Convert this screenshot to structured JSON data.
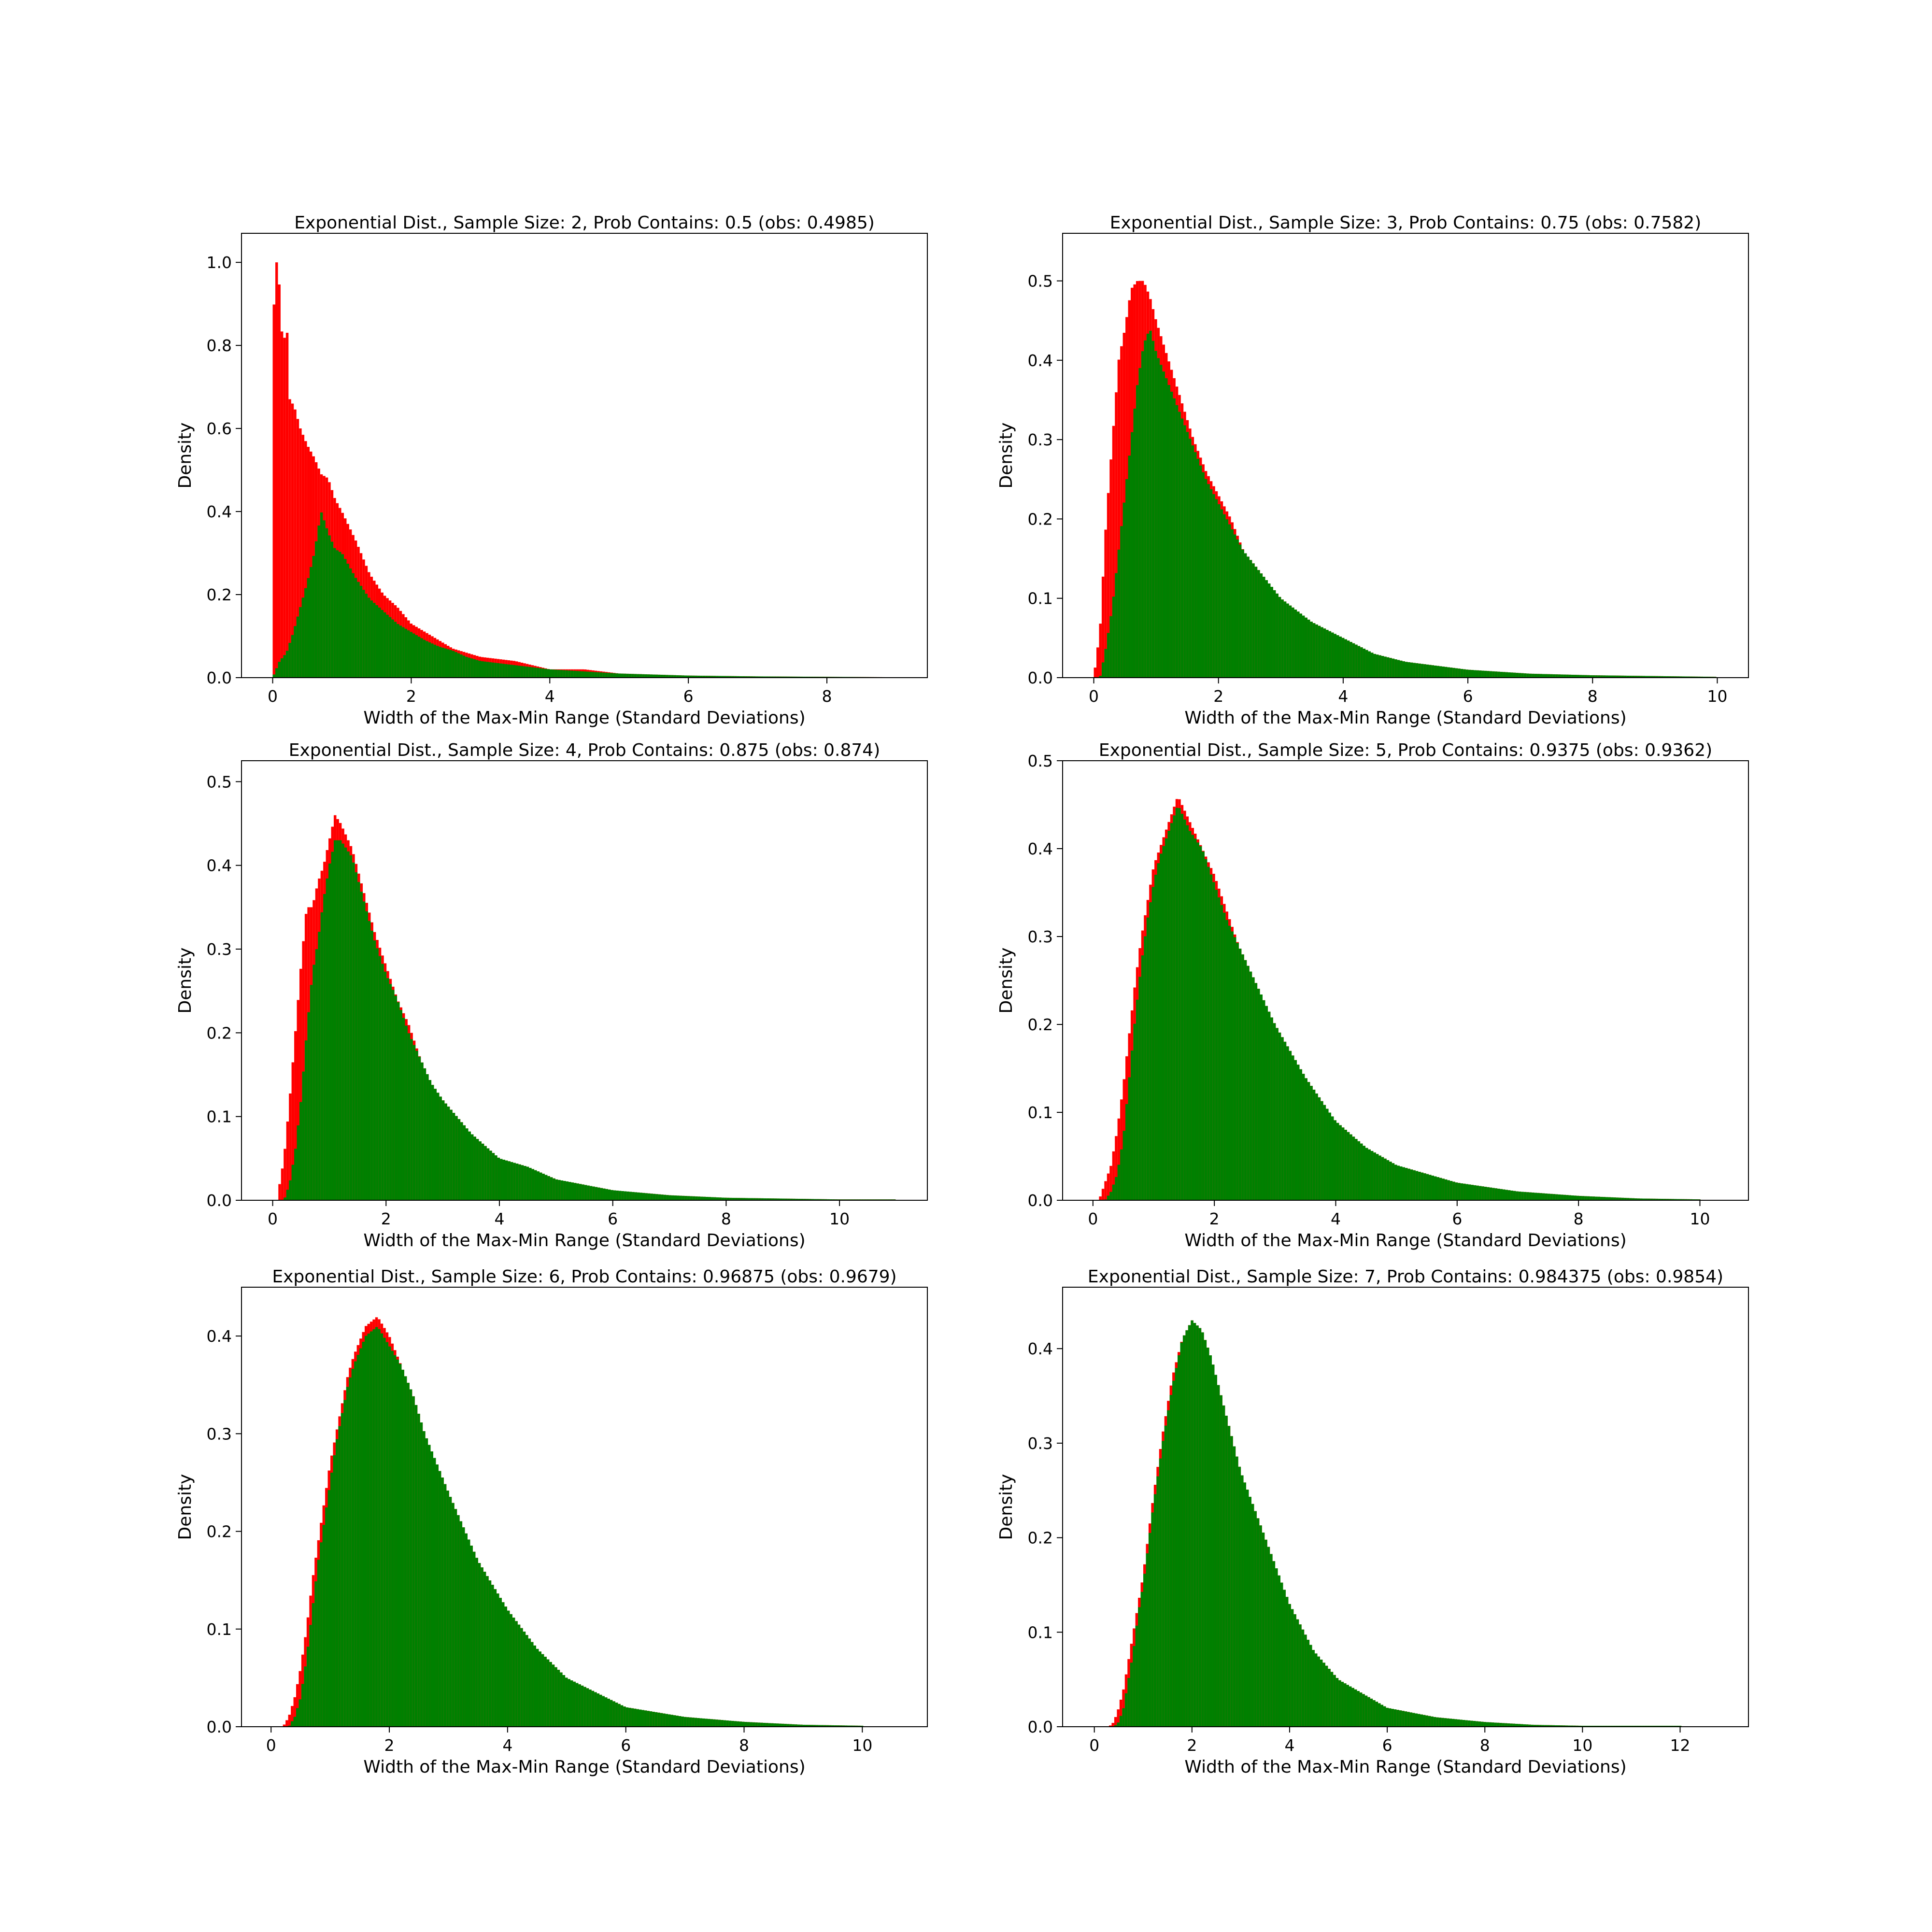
{
  "figure": {
    "background": "#ffffff",
    "panels": 6
  },
  "colors": {
    "all_samples": "#ff0000",
    "contains": "#008000",
    "axes": "#000000"
  },
  "chart_data": [
    {
      "type": "bar",
      "title": "Exponential Dist., Sample Size: 2, Prob Contains: 0.5 (obs: 0.4985)",
      "xlabel": "Width of the Max-Min Range (Standard Deviations)",
      "ylabel": "Density",
      "xlim": [
        -0.45,
        9.45
      ],
      "ylim": [
        0,
        1.07
      ],
      "xticks": [
        0,
        2,
        4,
        6,
        8
      ],
      "yticks": [
        0.0,
        0.2,
        0.4,
        0.6,
        0.8,
        1.0
      ],
      "ytick_decimals": 1,
      "grid": false,
      "legend": "none",
      "series": [
        {
          "color": "#ff0000",
          "x": [
            0,
            0.05,
            0.1,
            0.15,
            0.2,
            0.25,
            0.3,
            0.35,
            0.4,
            0.45,
            0.5,
            0.6,
            0.7,
            0.8,
            0.9,
            1.0,
            1.2,
            1.4,
            1.6,
            1.8,
            2.0,
            2.2,
            2.4,
            2.6,
            2.8,
            3.0,
            3.5,
            4.0,
            4.5,
            5.0,
            6.0,
            7.0,
            8.0,
            9.0
          ],
          "y": [
            0.83,
            1.01,
            0.94,
            0.78,
            0.87,
            0.66,
            0.66,
            0.63,
            0.6,
            0.58,
            0.56,
            0.53,
            0.49,
            0.48,
            0.43,
            0.4,
            0.33,
            0.25,
            0.2,
            0.17,
            0.13,
            0.11,
            0.09,
            0.07,
            0.06,
            0.05,
            0.04,
            0.02,
            0.02,
            0.01,
            0.005,
            0.003,
            0.002,
            0.001
          ]
        },
        {
          "color": "#008000",
          "x": [
            0,
            0.1,
            0.2,
            0.3,
            0.4,
            0.5,
            0.6,
            0.7,
            0.8,
            0.9,
            1.0,
            1.2,
            1.4,
            1.6,
            1.8,
            2.0,
            2.2,
            2.4,
            2.6,
            2.8,
            3.0,
            3.5,
            4.0,
            4.5,
            5.0,
            6.0,
            7.0,
            8.0,
            9.0
          ],
          "y": [
            0.0,
            0.04,
            0.06,
            0.11,
            0.17,
            0.23,
            0.3,
            0.4,
            0.35,
            0.31,
            0.3,
            0.24,
            0.19,
            0.16,
            0.13,
            0.11,
            0.09,
            0.075,
            0.065,
            0.05,
            0.04,
            0.03,
            0.02,
            0.015,
            0.01,
            0.005,
            0.003,
            0.002,
            0.001
          ]
        }
      ]
    },
    {
      "type": "bar",
      "title": "Exponential Dist., Sample Size: 3, Prob Contains: 0.75 (obs: 0.7582)",
      "xlabel": "Width of the Max-Min Range (Standard Deviations)",
      "ylabel": "Density",
      "xlim": [
        -0.5,
        10.5
      ],
      "ylim": [
        0,
        0.56
      ],
      "xticks": [
        0,
        2,
        4,
        6,
        8,
        10
      ],
      "yticks": [
        0.0,
        0.1,
        0.2,
        0.3,
        0.4,
        0.5
      ],
      "ytick_decimals": 1,
      "grid": false,
      "legend": "none",
      "series": [
        {
          "color": "#ff0000",
          "x": [
            0,
            0.1,
            0.2,
            0.3,
            0.4,
            0.5,
            0.6,
            0.7,
            0.8,
            0.9,
            1.0,
            1.2,
            1.4,
            1.6,
            1.8,
            2.0,
            2.2,
            2.4,
            2.6,
            2.8,
            3.0,
            3.5,
            4.0,
            4.5,
            5.0,
            6.0,
            7.0,
            8.0,
            9.0,
            10.0
          ],
          "y": [
            0.0,
            0.06,
            0.2,
            0.3,
            0.4,
            0.44,
            0.49,
            0.5,
            0.5,
            0.48,
            0.45,
            0.4,
            0.35,
            0.3,
            0.26,
            0.23,
            0.2,
            0.16,
            0.14,
            0.12,
            0.1,
            0.07,
            0.05,
            0.03,
            0.02,
            0.01,
            0.005,
            0.003,
            0.002,
            0.001
          ]
        },
        {
          "color": "#008000",
          "x": [
            0,
            0.1,
            0.2,
            0.3,
            0.4,
            0.5,
            0.6,
            0.7,
            0.8,
            0.9,
            1.0,
            1.2,
            1.4,
            1.6,
            1.8,
            2.0,
            2.2,
            2.4,
            2.6,
            2.8,
            3.0,
            3.5,
            4.0,
            4.5,
            5.0,
            6.0,
            7.0,
            8.0,
            9.0,
            10.0
          ],
          "y": [
            0.0,
            0.0,
            0.04,
            0.09,
            0.16,
            0.23,
            0.3,
            0.37,
            0.42,
            0.44,
            0.41,
            0.37,
            0.33,
            0.29,
            0.25,
            0.22,
            0.19,
            0.16,
            0.14,
            0.12,
            0.1,
            0.07,
            0.05,
            0.03,
            0.02,
            0.01,
            0.005,
            0.003,
            0.002,
            0.001
          ]
        }
      ]
    },
    {
      "type": "bar",
      "title": "Exponential Dist., Sample Size: 4, Prob Contains: 0.875 (obs: 0.874)",
      "xlabel": "Width of the Max-Min Range (Standard Deviations)",
      "ylabel": "Density",
      "xlim": [
        -0.55,
        11.55
      ],
      "ylim": [
        0,
        0.525
      ],
      "xticks": [
        0,
        2,
        4,
        6,
        8,
        10
      ],
      "yticks": [
        0.0,
        0.1,
        0.2,
        0.3,
        0.4,
        0.5
      ],
      "ytick_decimals": 1,
      "grid": false,
      "legend": "none",
      "series": [
        {
          "color": "#ff0000",
          "x": [
            0.1,
            0.2,
            0.3,
            0.4,
            0.5,
            0.6,
            0.7,
            0.8,
            0.9,
            1.0,
            1.1,
            1.2,
            1.4,
            1.6,
            1.8,
            2.0,
            2.2,
            2.4,
            2.6,
            2.8,
            3.0,
            3.5,
            4.0,
            4.5,
            5.0,
            6.0,
            7.0,
            8.0,
            9.0,
            10.0,
            11.0
          ],
          "y": [
            0.01,
            0.05,
            0.12,
            0.2,
            0.28,
            0.35,
            0.35,
            0.38,
            0.4,
            0.43,
            0.46,
            0.45,
            0.42,
            0.37,
            0.32,
            0.28,
            0.24,
            0.21,
            0.17,
            0.14,
            0.12,
            0.08,
            0.05,
            0.04,
            0.025,
            0.012,
            0.006,
            0.003,
            0.002,
            0.001,
            0.001
          ]
        },
        {
          "color": "#008000",
          "x": [
            0.1,
            0.2,
            0.3,
            0.4,
            0.5,
            0.6,
            0.7,
            0.8,
            0.9,
            1.0,
            1.1,
            1.2,
            1.4,
            1.6,
            1.8,
            2.0,
            2.2,
            2.4,
            2.6,
            2.8,
            3.0,
            3.5,
            4.0,
            4.5,
            5.0,
            6.0,
            7.0,
            8.0,
            9.0,
            10.0,
            11.0
          ],
          "y": [
            0.0,
            0.0,
            0.02,
            0.06,
            0.12,
            0.2,
            0.27,
            0.31,
            0.36,
            0.4,
            0.43,
            0.43,
            0.41,
            0.36,
            0.31,
            0.27,
            0.24,
            0.2,
            0.17,
            0.14,
            0.12,
            0.08,
            0.05,
            0.04,
            0.025,
            0.012,
            0.006,
            0.003,
            0.002,
            0.001,
            0.001
          ]
        }
      ]
    },
    {
      "type": "bar",
      "title": "Exponential Dist., Sample Size: 5, Prob Contains: 0.9375 (obs: 0.9362)",
      "xlabel": "Width of the Max-Min Range (Standard Deviations)",
      "ylabel": "Density",
      "xlim": [
        -0.5,
        10.8
      ],
      "ylim": [
        0,
        0.5
      ],
      "xticks": [
        0,
        2,
        4,
        6,
        8,
        10
      ],
      "yticks": [
        0.0,
        0.1,
        0.2,
        0.3,
        0.4,
        0.5
      ],
      "ytick_decimals": 1,
      "grid": false,
      "legend": "none",
      "series": [
        {
          "color": "#ff0000",
          "x": [
            0.1,
            0.2,
            0.3,
            0.4,
            0.5,
            0.6,
            0.7,
            0.8,
            0.9,
            1.0,
            1.1,
            1.2,
            1.3,
            1.4,
            1.6,
            1.8,
            2.0,
            2.2,
            2.4,
            2.6,
            2.8,
            3.0,
            3.5,
            4.0,
            4.5,
            5.0,
            6.0,
            7.0,
            8.0,
            9.0,
            10.0
          ],
          "y": [
            0.0,
            0.02,
            0.04,
            0.08,
            0.13,
            0.19,
            0.25,
            0.3,
            0.34,
            0.38,
            0.4,
            0.42,
            0.44,
            0.46,
            0.43,
            0.4,
            0.37,
            0.33,
            0.29,
            0.26,
            0.23,
            0.2,
            0.14,
            0.09,
            0.06,
            0.04,
            0.02,
            0.01,
            0.005,
            0.002,
            0.001
          ]
        },
        {
          "color": "#008000",
          "x": [
            0.1,
            0.2,
            0.3,
            0.4,
            0.5,
            0.6,
            0.7,
            0.8,
            0.9,
            1.0,
            1.1,
            1.2,
            1.3,
            1.4,
            1.6,
            1.8,
            2.0,
            2.2,
            2.4,
            2.6,
            2.8,
            3.0,
            3.5,
            4.0,
            4.5,
            5.0,
            6.0,
            7.0,
            8.0,
            9.0,
            10.0
          ],
          "y": [
            0.0,
            0.0,
            0.01,
            0.03,
            0.07,
            0.14,
            0.21,
            0.27,
            0.32,
            0.36,
            0.39,
            0.41,
            0.43,
            0.45,
            0.42,
            0.4,
            0.36,
            0.32,
            0.29,
            0.26,
            0.23,
            0.2,
            0.14,
            0.09,
            0.06,
            0.04,
            0.02,
            0.01,
            0.005,
            0.002,
            0.001
          ]
        }
      ]
    },
    {
      "type": "bar",
      "title": "Exponential Dist., Sample Size: 6, Prob Contains: 0.96875 (obs: 0.9679)",
      "xlabel": "Width of the Max-Min Range (Standard Deviations)",
      "ylabel": "Density",
      "xlim": [
        -0.5,
        11.1
      ],
      "ylim": [
        0,
        0.45
      ],
      "xticks": [
        0,
        2,
        4,
        6,
        8,
        10
      ],
      "yticks": [
        0.0,
        0.1,
        0.2,
        0.3,
        0.4
      ],
      "ytick_decimals": 1,
      "grid": false,
      "legend": "none",
      "series": [
        {
          "color": "#ff0000",
          "x": [
            0.2,
            0.3,
            0.4,
            0.5,
            0.6,
            0.7,
            0.8,
            0.9,
            1.0,
            1.1,
            1.2,
            1.3,
            1.4,
            1.6,
            1.8,
            2.0,
            2.2,
            2.4,
            2.6,
            2.8,
            3.0,
            3.5,
            4.0,
            4.5,
            5.0,
            6.0,
            7.0,
            8.0,
            9.0,
            10.0
          ],
          "y": [
            0.0,
            0.01,
            0.03,
            0.06,
            0.1,
            0.15,
            0.19,
            0.23,
            0.27,
            0.3,
            0.33,
            0.36,
            0.38,
            0.41,
            0.42,
            0.4,
            0.37,
            0.34,
            0.3,
            0.27,
            0.24,
            0.17,
            0.12,
            0.08,
            0.05,
            0.02,
            0.01,
            0.005,
            0.002,
            0.001
          ]
        },
        {
          "color": "#008000",
          "x": [
            0.2,
            0.3,
            0.4,
            0.5,
            0.6,
            0.7,
            0.8,
            0.9,
            1.0,
            1.1,
            1.2,
            1.3,
            1.4,
            1.6,
            1.8,
            2.0,
            2.2,
            2.4,
            2.6,
            2.8,
            3.0,
            3.5,
            4.0,
            4.5,
            5.0,
            6.0,
            7.0,
            8.0,
            9.0,
            10.0
          ],
          "y": [
            0.0,
            0.0,
            0.01,
            0.03,
            0.07,
            0.12,
            0.17,
            0.21,
            0.25,
            0.29,
            0.32,
            0.35,
            0.37,
            0.4,
            0.41,
            0.39,
            0.37,
            0.34,
            0.3,
            0.27,
            0.24,
            0.17,
            0.12,
            0.08,
            0.05,
            0.02,
            0.01,
            0.005,
            0.002,
            0.001
          ]
        }
      ]
    },
    {
      "type": "bar",
      "title": "Exponential Dist., Sample Size: 7, Prob Contains: 0.984375 (obs: 0.9854)",
      "xlabel": "Width of the Max-Min Range (Standard Deviations)",
      "ylabel": "Density",
      "xlim": [
        -0.65,
        13.4
      ],
      "ylim": [
        0,
        0.465
      ],
      "xticks": [
        0,
        2,
        4,
        6,
        8,
        10,
        12
      ],
      "yticks": [
        0.0,
        0.1,
        0.2,
        0.3,
        0.4
      ],
      "ytick_decimals": 1,
      "grid": false,
      "legend": "none",
      "series": [
        {
          "color": "#ff0000",
          "x": [
            0.3,
            0.4,
            0.5,
            0.6,
            0.7,
            0.8,
            0.9,
            1.0,
            1.2,
            1.4,
            1.6,
            1.8,
            2.0,
            2.2,
            2.4,
            2.6,
            2.8,
            3.0,
            3.5,
            4.0,
            4.5,
            5.0,
            6.0,
            7.0,
            8.0,
            9.0,
            10.0,
            12.0
          ],
          "y": [
            0.0,
            0.005,
            0.02,
            0.04,
            0.07,
            0.1,
            0.13,
            0.16,
            0.24,
            0.31,
            0.37,
            0.41,
            0.43,
            0.42,
            0.39,
            0.35,
            0.31,
            0.27,
            0.2,
            0.13,
            0.08,
            0.05,
            0.02,
            0.01,
            0.005,
            0.002,
            0.001,
            0.001
          ]
        },
        {
          "color": "#008000",
          "x": [
            0.3,
            0.4,
            0.5,
            0.6,
            0.7,
            0.8,
            0.9,
            1.0,
            1.2,
            1.4,
            1.6,
            1.8,
            2.0,
            2.2,
            2.4,
            2.6,
            2.8,
            3.0,
            3.5,
            4.0,
            4.5,
            5.0,
            6.0,
            7.0,
            8.0,
            9.0,
            10.0,
            12.0
          ],
          "y": [
            0.0,
            0.0,
            0.005,
            0.02,
            0.05,
            0.08,
            0.12,
            0.15,
            0.23,
            0.3,
            0.36,
            0.41,
            0.43,
            0.42,
            0.39,
            0.35,
            0.31,
            0.27,
            0.2,
            0.13,
            0.08,
            0.05,
            0.02,
            0.01,
            0.005,
            0.002,
            0.001,
            0.001
          ]
        }
      ]
    }
  ]
}
